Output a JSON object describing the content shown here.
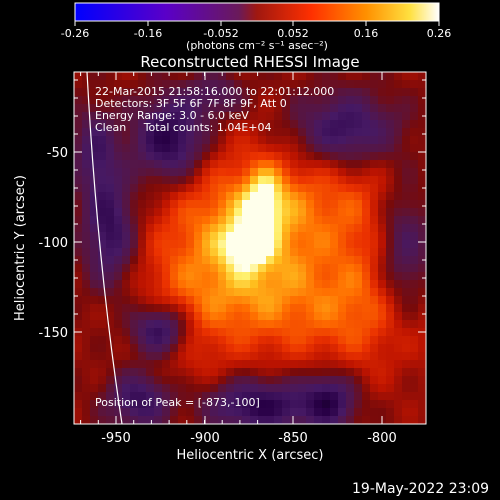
{
  "colorbar": {
    "ticks": [
      "-0.26",
      "-0.16",
      "-0.052",
      "0.052",
      "0.16",
      "0.26"
    ],
    "units": "(photons cm⁻² s⁻¹ asec⁻²)"
  },
  "title": "Reconstructed RHESSI Image",
  "info": {
    "time_range": "22-Mar-2015 21:58:16.000 to 22:01:12.000",
    "detectors": "Detectors: 3F 5F 6F 7F 8F 9F, Att 0",
    "energy": "Energy Range: 3.0 - 6.0 keV",
    "clean": "Clean     Total counts: 1.04E+04"
  },
  "peak_label": "Position of Peak = [-873,-100]",
  "axes": {
    "xlabel": "Heliocentric X (arcsec)",
    "ylabel": "Heliocentric Y (arcsec)",
    "xticks": [
      "-950",
      "-900",
      "-850",
      "-800"
    ],
    "yticks": [
      "-50",
      "-100",
      "-150"
    ]
  },
  "footer_date": "19-May-2022 23:09",
  "chart_data": {
    "type": "heatmap",
    "title": "Reconstructed RHESSI Image",
    "xlabel": "Heliocentric X (arcsec)",
    "ylabel": "Heliocentric Y (arcsec)",
    "xlim": [
      -968,
      -772
    ],
    "ylim": [
      -198,
      -22
    ],
    "x_ticks": [
      -950,
      -900,
      -850,
      -800
    ],
    "y_ticks": [
      -50,
      -100,
      -150
    ],
    "colorbar_range": [
      -0.26,
      0.26
    ],
    "colormap": "RHESSI red-temperature (blue→purple→red→orange→yellow→white)",
    "peak_position": [
      -873,
      -100
    ],
    "colors": {
      "background": "#000000",
      "axes": "#ffffff",
      "limb": "#ffffff"
    }
  }
}
